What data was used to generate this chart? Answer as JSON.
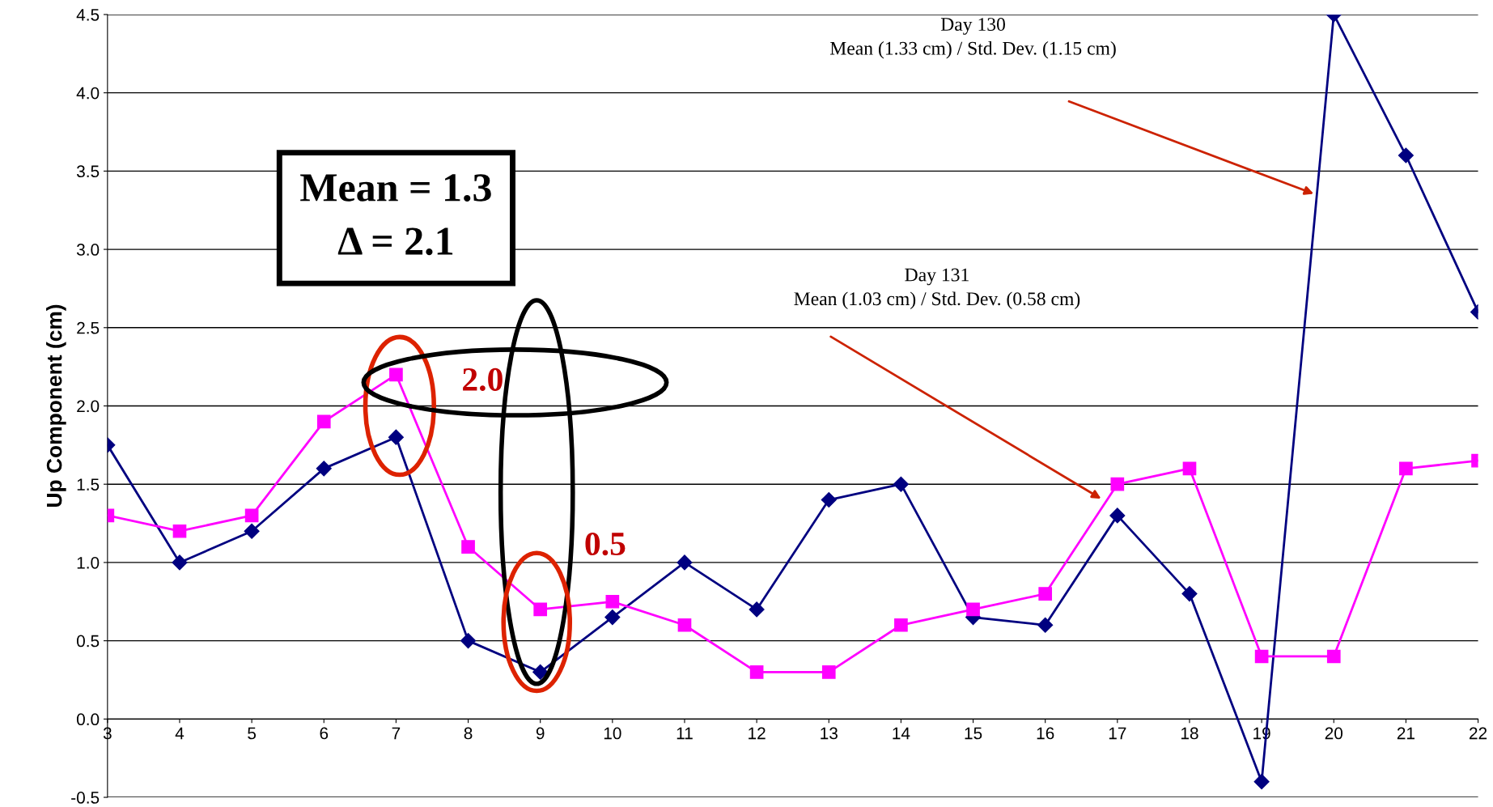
{
  "chart_data": {
    "type": "line",
    "ylabel": "Up Component (cm)",
    "x": [
      3,
      4,
      5,
      6,
      7,
      8,
      9,
      10,
      11,
      12,
      13,
      14,
      15,
      16,
      17,
      18,
      19,
      20,
      21,
      22
    ],
    "series": [
      {
        "color": "#000080",
        "marker": "diamond",
        "values": [
          1.75,
          1.0,
          1.2,
          1.6,
          1.8,
          0.5,
          0.3,
          0.65,
          1.0,
          0.7,
          1.4,
          1.5,
          0.65,
          0.6,
          1.3,
          0.8,
          -0.4,
          4.5,
          3.6,
          2.6
        ]
      },
      {
        "color": "#ff00ff",
        "marker": "square",
        "values": [
          1.3,
          1.2,
          1.3,
          1.9,
          2.2,
          1.1,
          0.7,
          0.75,
          0.6,
          0.3,
          0.3,
          0.6,
          0.7,
          0.8,
          1.5,
          1.6,
          0.4,
          0.4,
          1.6,
          1.65
        ]
      }
    ],
    "xlim": [
      3,
      22
    ],
    "xticks": [
      3,
      4,
      5,
      6,
      7,
      8,
      9,
      10,
      11,
      12,
      13,
      14,
      15,
      16,
      17,
      18,
      19,
      20,
      21,
      22
    ],
    "ylim": [
      -0.5,
      4.5
    ],
    "yticks": [
      -0.5,
      {
        "value": 0,
        "label": "0.0"
      },
      0.5,
      {
        "value": 1,
        "label": "1.0"
      },
      1.5,
      {
        "value": 2,
        "label": "2.0"
      },
      2.5,
      {
        "value": 3,
        "label": "3.0"
      },
      3.5,
      {
        "value": 4,
        "label": "4.0"
      },
      4.5
    ],
    "grid": "y",
    "legend": false,
    "annotations": [
      "Day 130\nMean (1.33 cm) / Std. Dev. (1.15 cm)",
      "Day 131\nMean (1.03 cm) / Std. Dev. (0.58 cm)",
      "Mean = 1.3\nΔ = 2.1",
      "2.0",
      "0.5"
    ]
  }
}
